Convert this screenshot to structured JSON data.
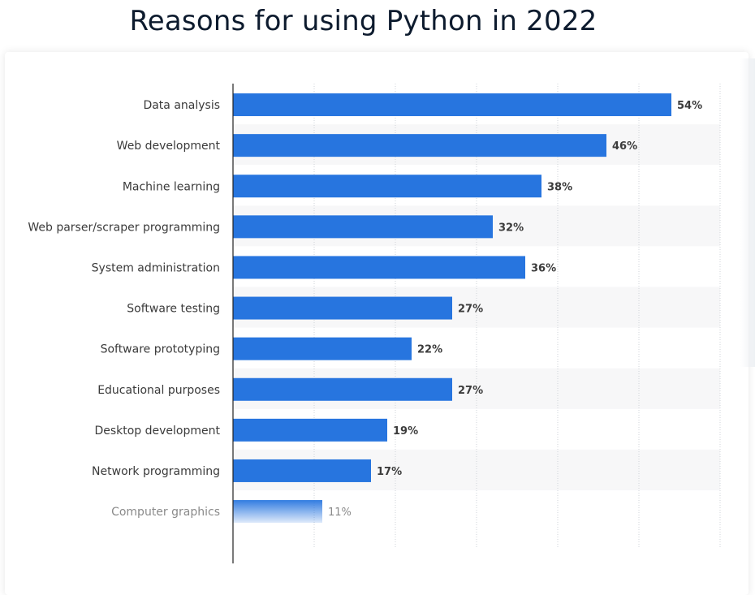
{
  "title": "Reasons for using Python in 2022",
  "colors": {
    "bar": "#2775df",
    "band": "#f7f7f8",
    "grid": "#cfd3d8",
    "axis": "#222222"
  },
  "chart_data": {
    "type": "bar",
    "orientation": "horizontal",
    "title": "Reasons for using Python in 2022",
    "xlabel": "",
    "ylabel": "",
    "xlim": [
      0,
      60
    ],
    "grid": true,
    "categories": [
      "Data analysis",
      "Web development",
      "Machine learning",
      "Web parser/scraper programming",
      "System administration",
      "Software testing",
      "Software prototyping",
      "Educational purposes",
      "Desktop development",
      "Network programming",
      "Computer graphics"
    ],
    "values": [
      54,
      46,
      38,
      32,
      36,
      27,
      22,
      27,
      19,
      17,
      11
    ],
    "value_labels": [
      "54%",
      "46%",
      "38%",
      "32%",
      "36%",
      "27%",
      "22%",
      "27%",
      "19%",
      "17%",
      "11%"
    ],
    "unit": "%"
  }
}
